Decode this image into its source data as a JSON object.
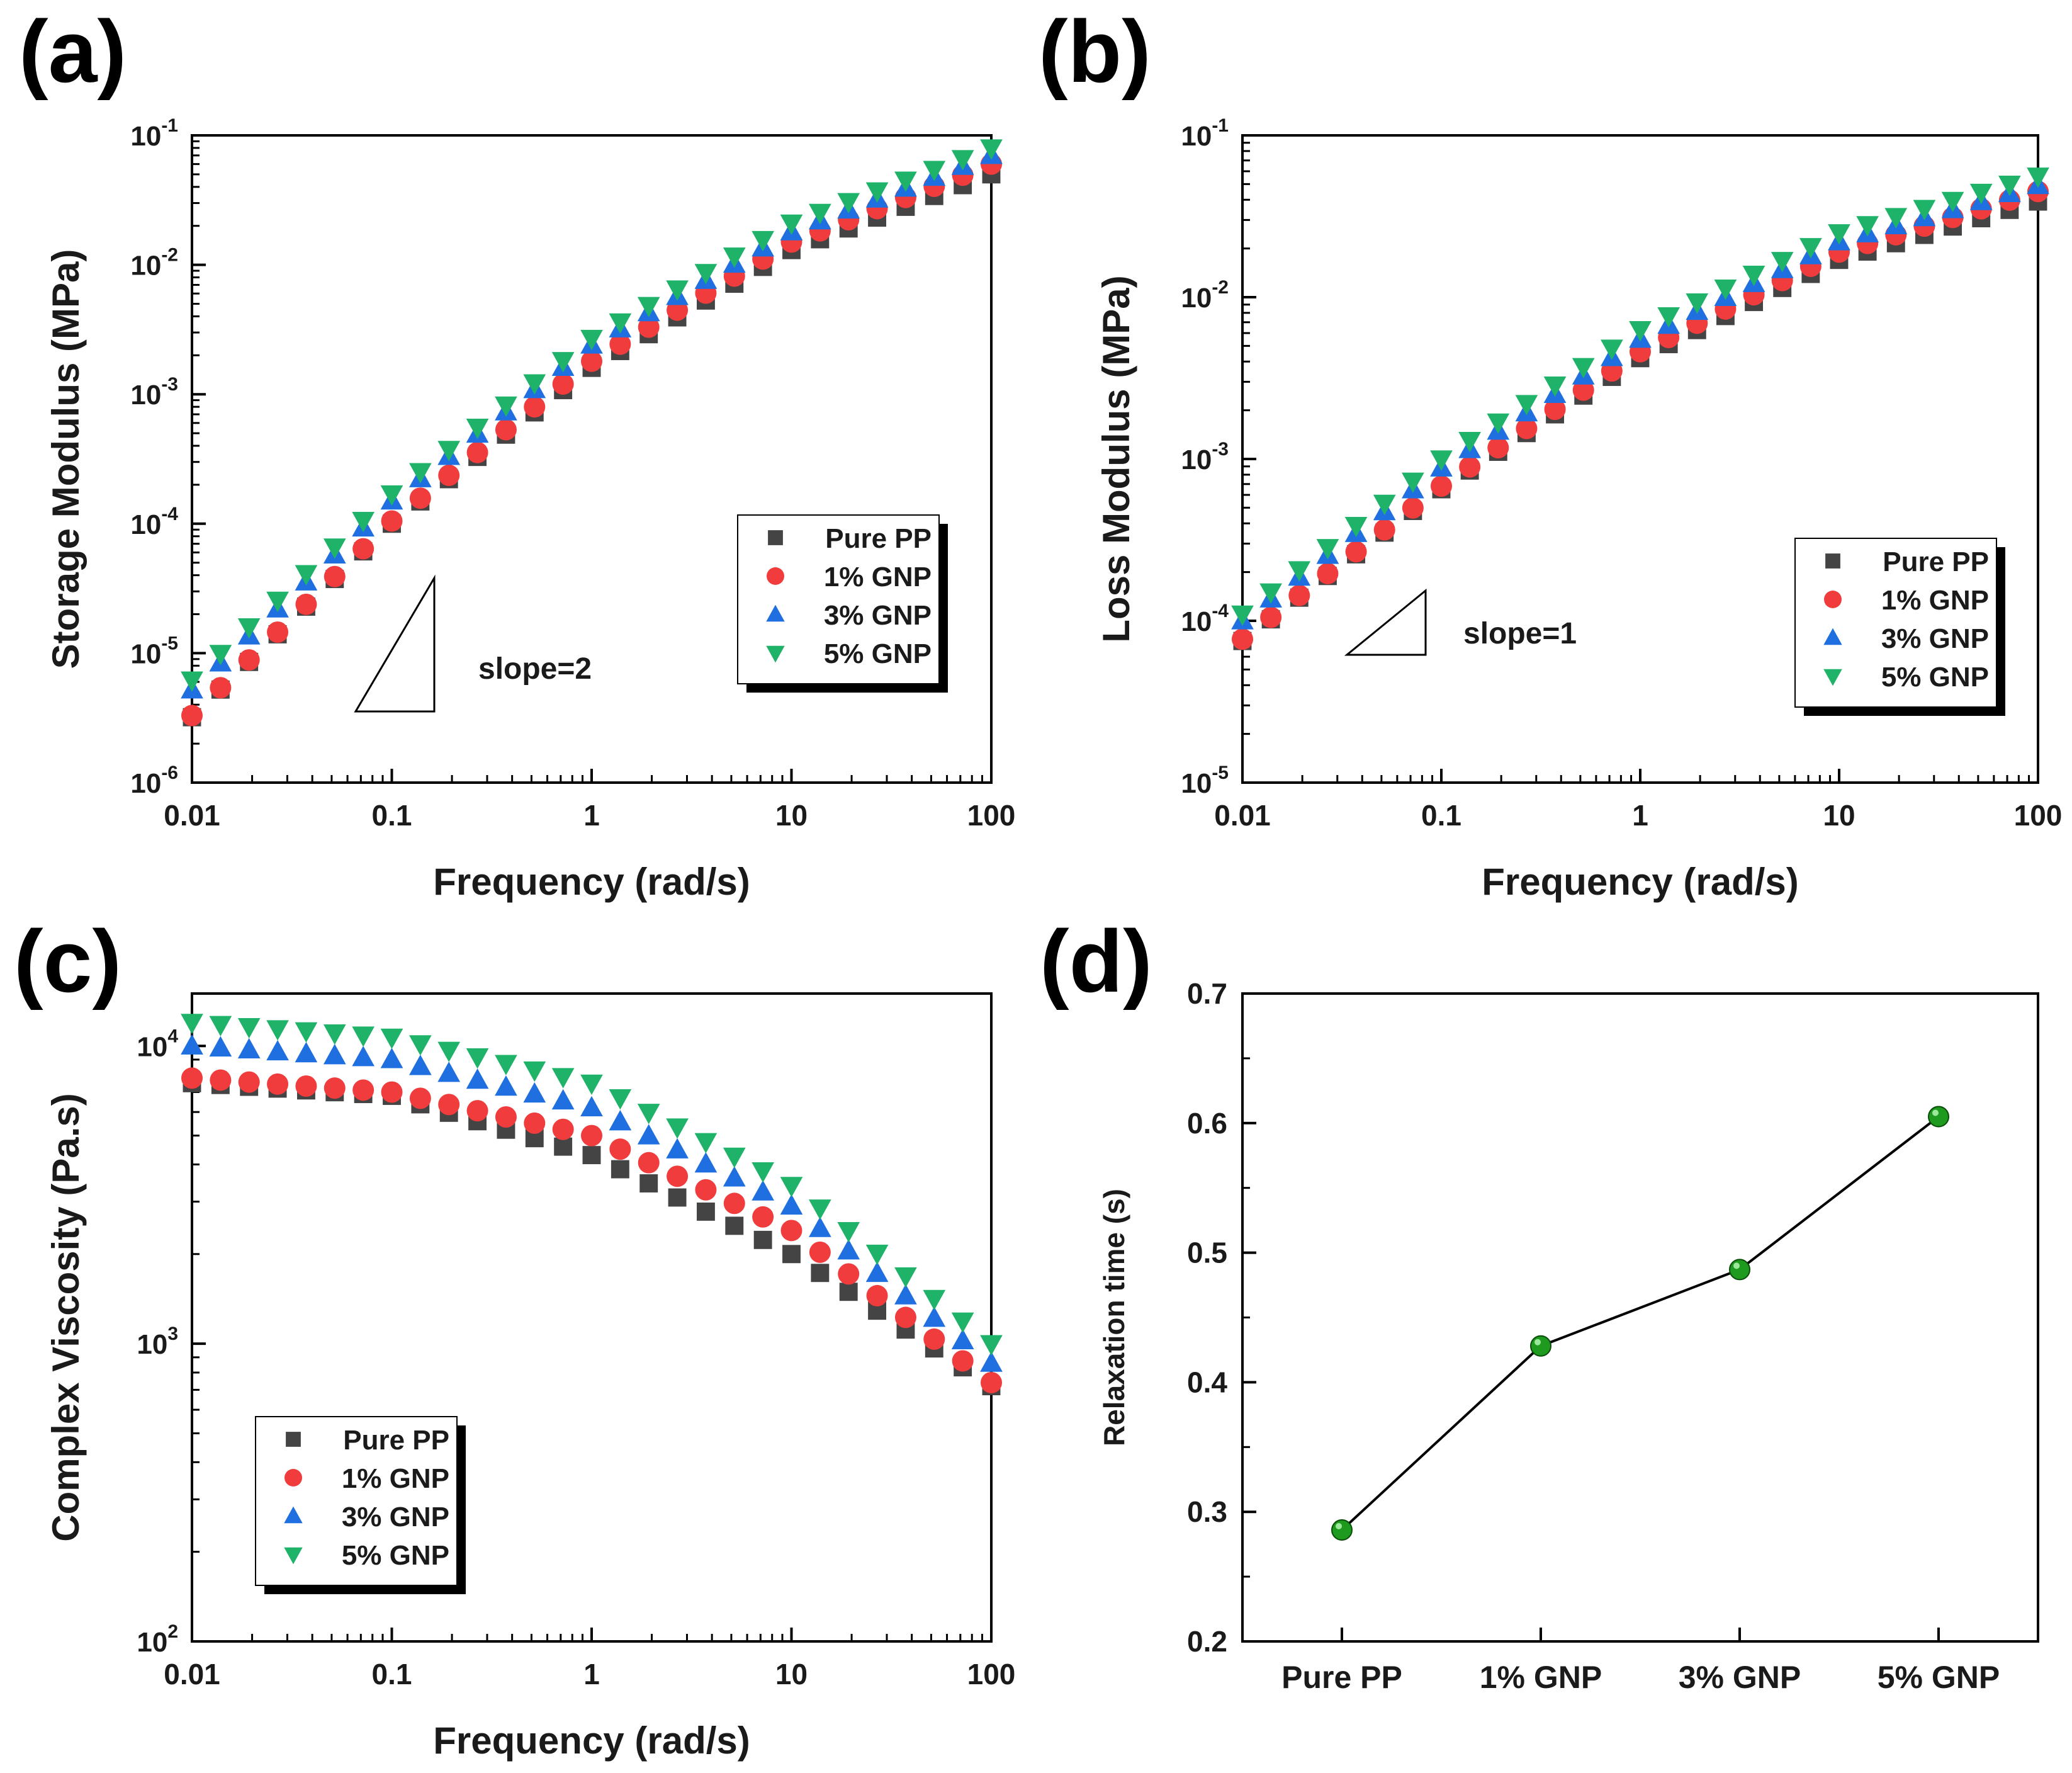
{
  "colors": {
    "pure_pp": "#444444",
    "gnp1": "#f03c3c",
    "gnp3": "#1f6fe0",
    "gnp5": "#1fb36a",
    "line_d": "#000000",
    "marker_d": "#1e9a1e"
  },
  "chart_data": [
    {
      "panel": "(a)",
      "type": "scatter",
      "xscale": "log",
      "yscale": "log",
      "xlabel": "Frequency (rad/s)",
      "ylabel": "Storage Modulus (MPa)",
      "xlim": [
        0.01,
        100
      ],
      "ylim": [
        1e-06,
        0.1
      ],
      "xticks": [
        {
          "v": 0.01,
          "label": "0.01"
        },
        {
          "v": 0.1,
          "label": "0.1"
        },
        {
          "v": 1,
          "label": "1"
        },
        {
          "v": 10,
          "label": "10"
        },
        {
          "v": 100,
          "label": "100"
        }
      ],
      "yticks": [
        {
          "v": 1e-06,
          "base": "10",
          "exp": "-6"
        },
        {
          "v": 1e-05,
          "base": "10",
          "exp": "-5"
        },
        {
          "v": 0.0001,
          "base": "10",
          "exp": "-4"
        },
        {
          "v": 0.001,
          "base": "10",
          "exp": "-3"
        },
        {
          "v": 0.01,
          "base": "10",
          "exp": "-2"
        },
        {
          "v": 0.1,
          "base": "10",
          "exp": "-1"
        }
      ],
      "annotation": "slope=2",
      "legend_position": "right-middle",
      "series": [
        {
          "name": "Pure PP",
          "marker": "square",
          "color_key": "pure_pp",
          "anchors": [
            [
              0.01,
              3.2e-06
            ],
            [
              0.1,
              0.0001
            ],
            [
              1,
              0.0016
            ],
            [
              10,
              0.013
            ],
            [
              100,
              0.05
            ]
          ]
        },
        {
          "name": "1% GNP",
          "marker": "circle",
          "color_key": "gnp1",
          "anchors": [
            [
              0.01,
              3.3e-06
            ],
            [
              0.1,
              0.000105
            ],
            [
              1,
              0.0018
            ],
            [
              10,
              0.015
            ],
            [
              100,
              0.06
            ]
          ]
        },
        {
          "name": "3% GNP",
          "marker": "triangle-up",
          "color_key": "gnp3",
          "anchors": [
            [
              0.01,
              5.2e-06
            ],
            [
              0.1,
              0.00015
            ],
            [
              1,
              0.0024
            ],
            [
              10,
              0.018
            ],
            [
              100,
              0.07
            ]
          ]
        },
        {
          "name": "5% GNP",
          "marker": "triangle-down",
          "color_key": "gnp5",
          "anchors": [
            [
              0.01,
              6.2e-06
            ],
            [
              0.1,
              0.00017
            ],
            [
              1,
              0.0027
            ],
            [
              10,
              0.021
            ],
            [
              100,
              0.08
            ]
          ]
        }
      ]
    },
    {
      "panel": "(b)",
      "type": "scatter",
      "xscale": "log",
      "yscale": "log",
      "xlabel": "Frequency (rad/s)",
      "ylabel": "Loss Modulus (MPa)",
      "xlim": [
        0.01,
        100
      ],
      "ylim": [
        1e-05,
        0.1
      ],
      "xticks": [
        {
          "v": 0.01,
          "label": "0.01"
        },
        {
          "v": 0.1,
          "label": "0.1"
        },
        {
          "v": 1,
          "label": "1"
        },
        {
          "v": 10,
          "label": "10"
        },
        {
          "v": 100,
          "label": "100"
        }
      ],
      "yticks": [
        {
          "v": 1e-05,
          "base": "10",
          "exp": "-5"
        },
        {
          "v": 0.0001,
          "base": "10",
          "exp": "-4"
        },
        {
          "v": 0.001,
          "base": "10",
          "exp": "-3"
        },
        {
          "v": 0.01,
          "base": "10",
          "exp": "-2"
        },
        {
          "v": 0.1,
          "base": "10",
          "exp": "-1"
        }
      ],
      "annotation": "slope=1",
      "legend_position": "right-middle",
      "series": [
        {
          "name": "Pure PP",
          "marker": "square",
          "color_key": "pure_pp",
          "anchors": [
            [
              0.01,
              7.5e-05
            ],
            [
              0.1,
              0.00065
            ],
            [
              1,
              0.0042
            ],
            [
              10,
              0.017
            ],
            [
              100,
              0.039
            ]
          ]
        },
        {
          "name": "1% GNP",
          "marker": "circle",
          "color_key": "gnp1",
          "anchors": [
            [
              0.01,
              7.7e-05
            ],
            [
              0.1,
              0.00068
            ],
            [
              1,
              0.0046
            ],
            [
              10,
              0.019
            ],
            [
              100,
              0.045
            ]
          ]
        },
        {
          "name": "3% GNP",
          "marker": "triangle-up",
          "color_key": "gnp3",
          "anchors": [
            [
              0.01,
              0.0001
            ],
            [
              0.1,
              0.00088
            ],
            [
              1,
              0.0055
            ],
            [
              10,
              0.022
            ],
            [
              100,
              0.049
            ]
          ]
        },
        {
          "name": "5% GNP",
          "marker": "triangle-down",
          "color_key": "gnp5",
          "anchors": [
            [
              0.01,
              0.00011
            ],
            [
              0.1,
              0.001
            ],
            [
              1,
              0.0063
            ],
            [
              10,
              0.025
            ],
            [
              100,
              0.056
            ]
          ]
        }
      ]
    },
    {
      "panel": "(c)",
      "type": "scatter",
      "xscale": "log",
      "yscale": "log",
      "xlabel": "Frequency (rad/s)",
      "ylabel": "Complex Viscosity (Pa.s)",
      "xlim": [
        0.01,
        100
      ],
      "ylim": [
        100,
        15000
      ],
      "xticks": [
        {
          "v": 0.01,
          "label": "0.01"
        },
        {
          "v": 0.1,
          "label": "0.1"
        },
        {
          "v": 1,
          "label": "1"
        },
        {
          "v": 10,
          "label": "10"
        },
        {
          "v": 100,
          "label": "100"
        }
      ],
      "yticks": [
        {
          "v": 100,
          "base": "10",
          "exp": "2"
        },
        {
          "v": 1000,
          "base": "10",
          "exp": "3"
        },
        {
          "v": 10000,
          "base": "10",
          "exp": "4"
        }
      ],
      "legend_position": "bottom-left",
      "series": [
        {
          "name": "Pure PP",
          "marker": "square",
          "color_key": "pure_pp",
          "anchors": [
            [
              0.01,
              7500
            ],
            [
              0.1,
              6800
            ],
            [
              1,
              4300
            ],
            [
              10,
              2000
            ],
            [
              100,
              720
            ]
          ]
        },
        {
          "name": "1% GNP",
          "marker": "circle",
          "color_key": "gnp1",
          "anchors": [
            [
              0.01,
              7800
            ],
            [
              0.1,
              7000
            ],
            [
              1,
              5000
            ],
            [
              10,
              2400
            ],
            [
              100,
              740
            ]
          ]
        },
        {
          "name": "3% GNP",
          "marker": "triangle-up",
          "color_key": "gnp3",
          "anchors": [
            [
              0.01,
              10000
            ],
            [
              0.1,
              9000
            ],
            [
              1,
              6200
            ],
            [
              10,
              2900
            ],
            [
              100,
              860
            ]
          ]
        },
        {
          "name": "5% GNP",
          "marker": "triangle-down",
          "color_key": "gnp5",
          "anchors": [
            [
              0.01,
              12000
            ],
            [
              0.1,
              10700
            ],
            [
              1,
              7500
            ],
            [
              10,
              3400
            ],
            [
              100,
              1000
            ]
          ]
        }
      ]
    },
    {
      "panel": "(d)",
      "type": "line",
      "xlabel": "",
      "ylabel": "Relaxation time (s)",
      "categories": [
        "Pure PP",
        "1% GNP",
        "3% GNP",
        "5% GNP"
      ],
      "values": [
        0.286,
        0.428,
        0.487,
        0.605
      ],
      "ylim": [
        0.2,
        0.7
      ],
      "yticks": [
        {
          "v": 0.2,
          "label": "0.2"
        },
        {
          "v": 0.3,
          "label": "0.3"
        },
        {
          "v": 0.4,
          "label": "0.4"
        },
        {
          "v": 0.5,
          "label": "0.5"
        },
        {
          "v": 0.6,
          "label": "0.6"
        },
        {
          "v": 0.7,
          "label": "0.7"
        }
      ]
    }
  ]
}
